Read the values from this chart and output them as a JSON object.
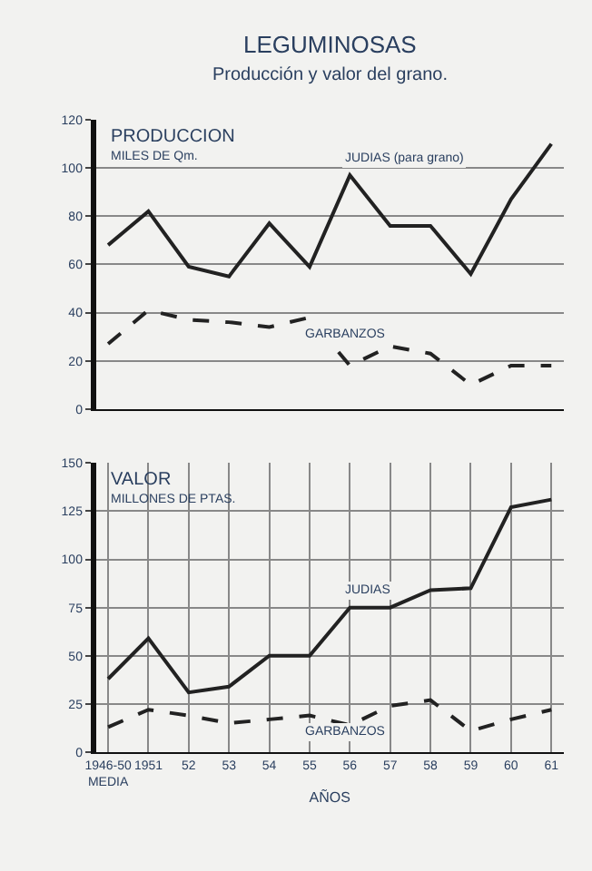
{
  "chart_data": [
    {
      "type": "line",
      "title": "LEGUMINOSAS",
      "subtitle": "Producción y valor del grano.",
      "annotations": [
        "PRODUCCION",
        "MILES DE Qm."
      ],
      "categories": [
        null,
        null,
        null,
        null,
        null,
        null,
        null,
        null,
        null,
        null,
        null,
        null
      ],
      "series": [
        {
          "name": "JUDIAS (para grano)",
          "color": "#222222",
          "line_style": "solid",
          "values": [
            68,
            82,
            59,
            55,
            77,
            59,
            97,
            76,
            76,
            56,
            87,
            110
          ]
        },
        {
          "name": "GARBANZOS",
          "color": "#222222",
          "line_style": "dashed",
          "values": [
            27,
            41,
            37,
            36,
            34,
            38,
            18,
            26,
            23,
            10,
            18,
            18
          ]
        }
      ],
      "ylim": [
        0,
        120
      ],
      "yticks": [
        0,
        20,
        40,
        60,
        80,
        100,
        120
      ],
      "grid": true
    },
    {
      "type": "line",
      "annotations": [
        "VALOR",
        "MILLONES DE PTAS."
      ],
      "xlabel": "AÑOS",
      "categories": [
        "1946-50 MEDIA",
        "1951",
        "52",
        "53",
        "54",
        "55",
        "56",
        "57",
        "58",
        "59",
        "60",
        "61"
      ],
      "series": [
        {
          "name": "JUDIAS",
          "color": "#222222",
          "line_style": "solid",
          "values": [
            38,
            59,
            31,
            34,
            50,
            50,
            75,
            75,
            84,
            85,
            127,
            131
          ]
        },
        {
          "name": "GARBANZOS",
          "color": "#222222",
          "line_style": "dashed",
          "values": [
            13,
            22,
            19,
            15,
            17,
            19,
            14,
            24,
            27,
            11,
            17,
            22
          ]
        }
      ],
      "ylim": [
        0,
        150
      ],
      "yticks": [
        0,
        25,
        50,
        75,
        100,
        125,
        150
      ],
      "grid": true
    }
  ]
}
